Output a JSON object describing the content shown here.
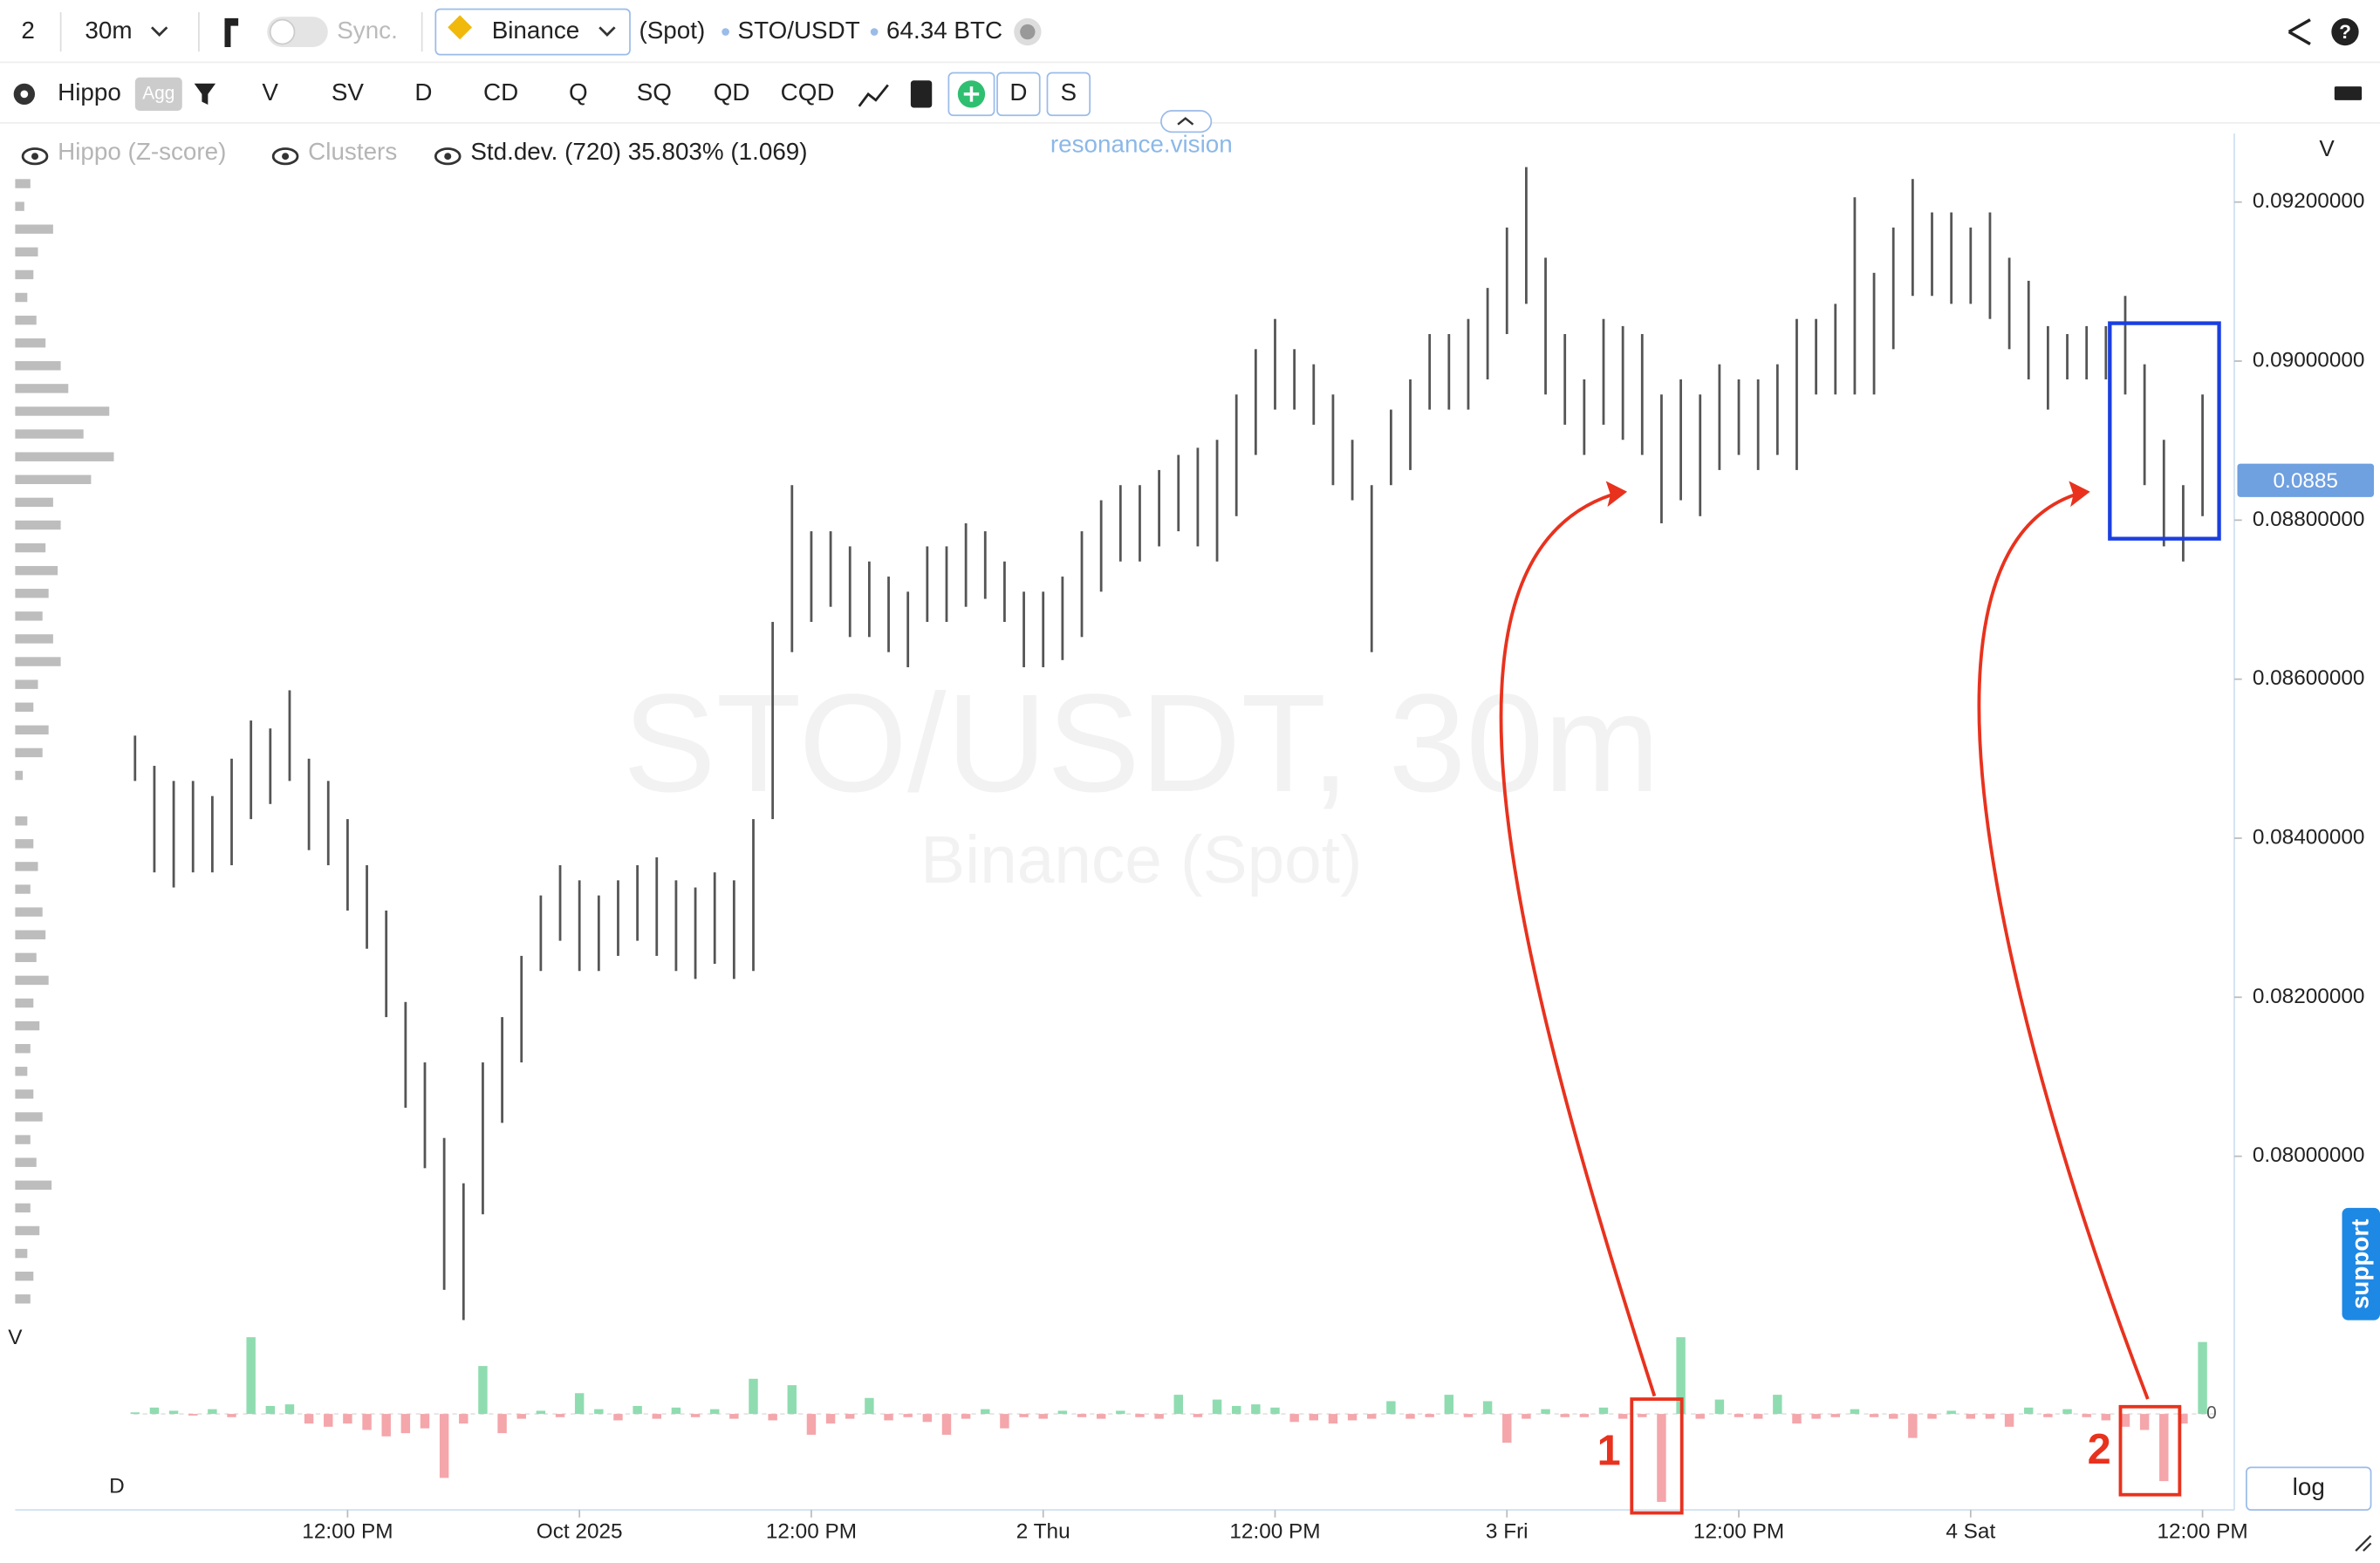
{
  "header": {
    "layout": "2",
    "interval": "30m",
    "sync": "Sync.",
    "exchange": "Binance",
    "market": "(Spot)",
    "pair": "STO/USDT",
    "volume": "64.34 BTC"
  },
  "toolbar": {
    "indicator": "Hippo",
    "agg": "Agg",
    "buttons": [
      "V",
      "SV",
      "D",
      "CD",
      "Q",
      "SQ",
      "QD",
      "CQD"
    ],
    "toggles": [
      "D",
      "S"
    ]
  },
  "legend": {
    "items": [
      "Hippo (Z-score)",
      "Clusters",
      "Std.dev. (720) 35.803% (1.069)"
    ]
  },
  "brand": "resonance.vision",
  "controls": {
    "log": "log",
    "support": "support"
  },
  "chart_data": [
    {
      "type": "range",
      "title": "STO/USDT, 30m",
      "subtitle": "Binance (Spot)",
      "color": "#555555",
      "categories": [
        null,
        null,
        null,
        null,
        null,
        null,
        null,
        null,
        null,
        null,
        null,
        "12:00 PM",
        null,
        null,
        null,
        null,
        null,
        null,
        null,
        null,
        null,
        null,
        null,
        "Oct 2025",
        null,
        null,
        null,
        null,
        null,
        null,
        null,
        null,
        null,
        null,
        null,
        "12:00 PM",
        null,
        null,
        null,
        null,
        null,
        null,
        null,
        null,
        null,
        null,
        null,
        "2 Thu",
        null,
        null,
        null,
        null,
        null,
        null,
        null,
        null,
        null,
        null,
        null,
        "12:00 PM",
        null,
        null,
        null,
        null,
        null,
        null,
        null,
        null,
        null,
        null,
        null,
        "3 Fri",
        null,
        null,
        null,
        null,
        null,
        null,
        null,
        null,
        null,
        null,
        null,
        "12:00 PM",
        null,
        null,
        null,
        null,
        null,
        null,
        null,
        null,
        null,
        null,
        null,
        "4 Sat",
        null,
        null,
        null,
        null,
        null,
        null,
        null,
        null,
        null,
        null,
        null,
        "12:00 PM"
      ],
      "high": [
        0.08529,
        0.08491,
        0.08472,
        0.08472,
        0.08453,
        0.085,
        0.08548,
        0.08538,
        0.08586,
        0.085,
        0.08472,
        0.08424,
        0.08366,
        0.08309,
        0.08194,
        0.08118,
        0.08023,
        0.07966,
        0.08118,
        0.08175,
        0.08252,
        0.08328,
        0.08366,
        0.08347,
        0.08328,
        0.08347,
        0.08366,
        0.08376,
        0.08347,
        0.08338,
        0.08357,
        0.08347,
        0.08424,
        0.08672,
        0.08844,
        0.08786,
        0.08786,
        0.08767,
        0.08748,
        0.08729,
        0.0871,
        0.08767,
        0.08767,
        0.08796,
        0.08786,
        0.08748,
        0.0871,
        0.0871,
        0.08729,
        0.08786,
        0.08825,
        0.08844,
        0.08844,
        0.08863,
        0.08882,
        0.08891,
        0.08901,
        0.08958,
        0.09015,
        0.09053,
        0.09015,
        0.08996,
        0.08958,
        0.08901,
        0.08844,
        0.08939,
        0.08977,
        0.09034,
        0.09034,
        0.09053,
        0.09092,
        0.09168,
        0.09244,
        0.0913,
        0.09034,
        0.08977,
        0.09053,
        0.09044,
        0.09034,
        0.08958,
        0.08977,
        0.08958,
        0.08996,
        0.08977,
        0.08977,
        0.08996,
        0.09053,
        0.09053,
        0.09072,
        0.09206,
        0.09111,
        0.09168,
        0.09229,
        0.09187,
        0.09187,
        0.09168,
        0.09187,
        0.0913,
        0.09101,
        0.09044,
        0.09034,
        0.09044,
        0.09044,
        0.09082,
        0.08996,
        0.08901,
        0.08844,
        0.08958
      ],
      "low": [
        0.08472,
        0.08357,
        0.08338,
        0.08357,
        0.08357,
        0.08366,
        0.08424,
        0.08443,
        0.08472,
        0.08385,
        0.08366,
        0.08309,
        0.08261,
        0.08175,
        0.08061,
        0.07985,
        0.07832,
        0.07794,
        0.07927,
        0.08042,
        0.08118,
        0.08233,
        0.08271,
        0.08233,
        0.08233,
        0.08252,
        0.08271,
        0.08252,
        0.08233,
        0.08223,
        0.08242,
        0.08223,
        0.08233,
        0.08424,
        0.08634,
        0.08672,
        0.08691,
        0.08653,
        0.08653,
        0.08634,
        0.08615,
        0.08672,
        0.08672,
        0.08691,
        0.08701,
        0.08672,
        0.08615,
        0.08615,
        0.08624,
        0.08653,
        0.0871,
        0.08748,
        0.08748,
        0.08767,
        0.08786,
        0.08767,
        0.08748,
        0.08805,
        0.08882,
        0.08939,
        0.08939,
        0.0892,
        0.08844,
        0.08825,
        0.08634,
        0.08844,
        0.08863,
        0.08939,
        0.08939,
        0.08939,
        0.08977,
        0.09034,
        0.09072,
        0.08958,
        0.0892,
        0.08882,
        0.0892,
        0.08901,
        0.08882,
        0.08796,
        0.08825,
        0.08805,
        0.08863,
        0.08882,
        0.08863,
        0.08882,
        0.08863,
        0.08958,
        0.08958,
        0.08958,
        0.08958,
        0.09015,
        0.09082,
        0.09082,
        0.09072,
        0.09072,
        0.09053,
        0.09015,
        0.08977,
        0.08939,
        0.08977,
        0.08977,
        0.08977,
        0.08958,
        0.08844,
        0.08767,
        0.08748,
        0.08805
      ],
      "ylim": [
        0.0779,
        0.0929
      ],
      "yticks": [
        {
          "value": 0.08,
          "label": "0.08000000"
        },
        {
          "value": 0.082,
          "label": "0.08200000"
        },
        {
          "value": 0.084,
          "label": "0.08400000"
        },
        {
          "value": 0.086,
          "label": "0.08600000"
        },
        {
          "value": 0.088,
          "label": "0.08800000"
        },
        {
          "value": 0.09,
          "label": "0.09000000"
        },
        {
          "value": 0.092,
          "label": "0.09200000"
        }
      ],
      "y_axis_label": "V",
      "last_price": 0.0885,
      "last_price_color": "#6fa0e0",
      "volume_profile": [
        10,
        6,
        25,
        15,
        12,
        8,
        14,
        20,
        30,
        35,
        62,
        45,
        65,
        50,
        25,
        30,
        20,
        28,
        22,
        18,
        25,
        30,
        15,
        12,
        22,
        18,
        5,
        0,
        8,
        12,
        15,
        10,
        18,
        20,
        14,
        22,
        12,
        16,
        10,
        8,
        12,
        18,
        10,
        14,
        24,
        10,
        16,
        8,
        12,
        10
      ],
      "volume_profile_lim": [
        0,
        70
      ],
      "volume_profile_label": "V",
      "volume_profile_color": "#bdbdbd",
      "annotations": [
        "1",
        "2"
      ]
    },
    {
      "type": "delta",
      "label": "D",
      "up_color": "#8fdcb0",
      "down_color": "#f4a6ab",
      "values": [
        1,
        4,
        2,
        -1,
        3,
        -2,
        48,
        5,
        6,
        -6,
        -8,
        -6,
        -10,
        -14,
        -12,
        -9,
        -40,
        -6,
        30,
        -12,
        -3,
        2,
        -2,
        13,
        3,
        -4,
        5,
        -3,
        4,
        -2,
        3,
        -3,
        22,
        -4,
        18,
        -13,
        -6,
        -3,
        10,
        -4,
        -2,
        -5,
        -13,
        -3,
        3,
        -9,
        -2,
        -3,
        2,
        -2,
        -3,
        2,
        -2,
        -3,
        12,
        -2,
        9,
        5,
        6,
        4,
        -5,
        -4,
        -6,
        -4,
        -3,
        8,
        -3,
        -2,
        12,
        -2,
        8,
        -18,
        -3,
        3,
        -2,
        -2,
        4,
        -3,
        -2,
        -55,
        48,
        -3,
        9,
        -2,
        -3,
        12,
        -6,
        -3,
        -2,
        3,
        -2,
        -3,
        -15,
        -3,
        2,
        -3,
        -3,
        -8,
        4,
        -2,
        3,
        -2,
        -4,
        -8,
        -10,
        -42,
        -6,
        45
      ],
      "ylim": [
        -60,
        52
      ],
      "yticks": [
        0
      ]
    }
  ]
}
